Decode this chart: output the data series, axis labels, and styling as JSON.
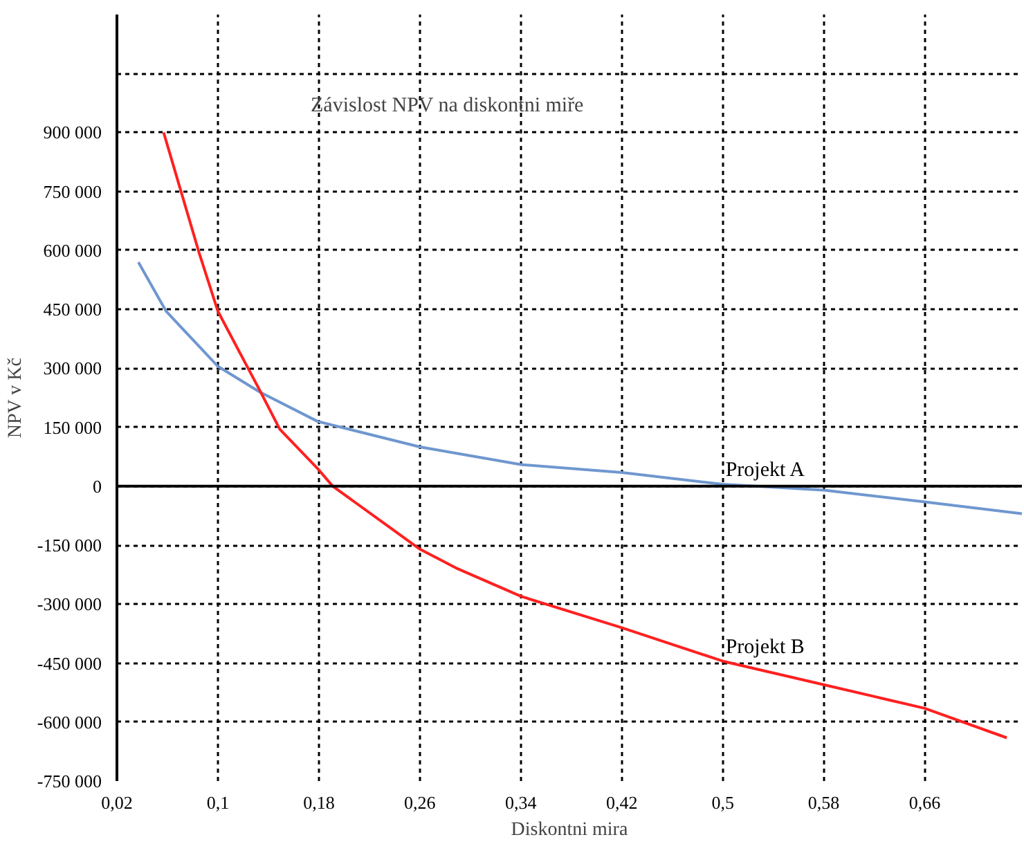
{
  "chart_data": {
    "type": "line",
    "title": "Závislost NPV na diskontni miře",
    "xlabel": "Diskontni mira",
    "ylabel": "NPV v Kč",
    "xlim": [
      0.02,
      0.737
    ],
    "ylim": [
      -750000,
      1200000
    ],
    "xticks": [
      {
        "value": 0.02,
        "label": "0,02"
      },
      {
        "value": 0.1,
        "label": "0,1"
      },
      {
        "value": 0.18,
        "label": "0,18"
      },
      {
        "value": 0.26,
        "label": "0,26"
      },
      {
        "value": 0.34,
        "label": "0,34"
      },
      {
        "value": 0.42,
        "label": "0,42"
      },
      {
        "value": 0.5,
        "label": "0,5"
      },
      {
        "value": 0.58,
        "label": "0,58"
      },
      {
        "value": 0.66,
        "label": "0,66"
      }
    ],
    "yticks": [
      {
        "value": -750000,
        "label": "-750 000"
      },
      {
        "value": -600000,
        "label": "-600 000"
      },
      {
        "value": -450000,
        "label": "-450 000"
      },
      {
        "value": -300000,
        "label": "-300 000"
      },
      {
        "value": -150000,
        "label": "-150 000"
      },
      0,
      {
        "value": 150000,
        "label": "150 000"
      },
      {
        "value": 300000,
        "label": "300 000"
      },
      {
        "value": 450000,
        "label": "450 000"
      },
      {
        "value": 600000,
        "label": "600 000"
      },
      {
        "value": 750000,
        "label": "750 000"
      },
      {
        "value": 900000,
        "label": "900 000"
      },
      {
        "value": 1050000,
        "label": null
      }
    ],
    "grid": true,
    "line_style": "solid",
    "series": [
      {
        "name": "Projekt A",
        "color": "#6f97cf",
        "x": [
          0.037,
          0.059,
          0.1,
          0.133,
          0.179,
          0.26,
          0.34,
          0.42,
          0.5,
          0.58,
          0.66,
          0.737
        ],
        "values": [
          570000,
          445000,
          305000,
          240000,
          165000,
          100000,
          55000,
          35000,
          5000,
          -10000,
          -40000,
          -70000
        ]
      },
      {
        "name": "Projekt B",
        "color": "#ff2020",
        "x": [
          0.057,
          0.085,
          0.1,
          0.133,
          0.149,
          0.179,
          0.191,
          0.26,
          0.29,
          0.34,
          0.42,
          0.5,
          0.58,
          0.66,
          0.725
        ],
        "values": [
          900000,
          595000,
          445000,
          245000,
          145000,
          45000,
          0,
          -160000,
          -210000,
          -280000,
          -360000,
          -445000,
          -505000,
          -565000,
          -640000
        ]
      }
    ]
  }
}
